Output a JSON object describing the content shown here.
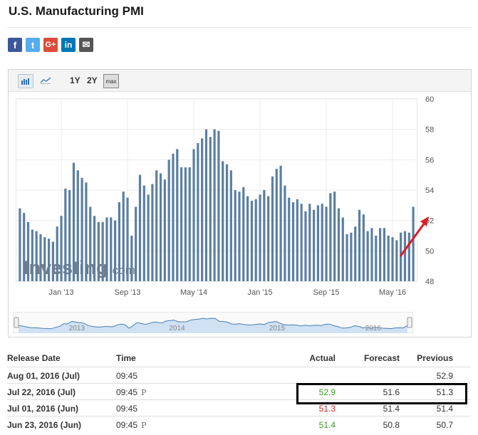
{
  "page": {
    "title": "U.S. Manufacturing PMI"
  },
  "share": {
    "facebook": "f",
    "twitter": "t",
    "googleplus": "G+",
    "linkedin": "in",
    "email": "✉"
  },
  "toolbar": {
    "range_1y": "1Y",
    "range_2y": "2Y",
    "range_max": "max"
  },
  "watermark": {
    "brand": "Investing",
    "suffix": ".com"
  },
  "chart_data": {
    "type": "bar",
    "color": "#5b7fa3",
    "ylim": [
      48,
      60
    ],
    "yticks": [
      "48",
      "50",
      "52",
      "54",
      "56",
      "58",
      "60"
    ],
    "xticks": [
      {
        "label": "Jan '13",
        "index": 10
      },
      {
        "label": "Sep '13",
        "index": 26
      },
      {
        "label": "May '14",
        "index": 42
      },
      {
        "label": "Jan '15",
        "index": 58
      },
      {
        "label": "Sep '15",
        "index": 74
      },
      {
        "label": "May '16",
        "index": 90
      }
    ],
    "values": [
      52.8,
      52.5,
      51.9,
      51.4,
      51.3,
      51.1,
      50.9,
      50.8,
      50.6,
      51.6,
      52.3,
      54.1,
      54.0,
      55.8,
      55.3,
      54.8,
      54.5,
      52.9,
      52.3,
      51.9,
      51.9,
      52.2,
      52.2,
      52.0,
      53.2,
      53.9,
      53.5,
      51.0,
      52.9,
      55.0,
      54.3,
      53.7,
      54.4,
      55.3,
      55.1,
      54.7,
      56.0,
      56.4,
      56.7,
      55.5,
      55.5,
      55.5,
      56.7,
      57.1,
      57.4,
      58.0,
      57.5,
      58.0,
      57.9,
      55.9,
      55.7,
      55.3,
      54.0,
      53.9,
      54.2,
      53.6,
      53.3,
      53.4,
      53.7,
      54.0,
      53.6,
      54.9,
      55.4,
      55.6,
      54.3,
      53.5,
      53.2,
      53.4,
      53.1,
      52.6,
      53.1,
      52.7,
      53.0,
      53.1,
      52.9,
      53.8,
      53.9,
      52.8,
      52.2,
      51.1,
      51.2,
      51.6,
      52.7,
      52.4,
      51.3,
      51.5,
      51.0,
      51.5,
      51.5,
      51.0,
      50.9,
      50.7,
      51.2,
      51.3,
      51.2,
      52.9
    ],
    "navigator_labels": [
      "2013",
      "2014",
      "2015",
      "2016"
    ]
  },
  "table": {
    "headers": {
      "release_date": "Release Date",
      "time": "Time",
      "actual": "Actual",
      "forecast": "Forecast",
      "previous": "Previous"
    },
    "rows": [
      {
        "date": "Aug 01, 2016 (Jul)",
        "time": "09:45",
        "prelim": "",
        "actual": "",
        "forecast": "",
        "previous": "52.9"
      },
      {
        "date": "Jul 22, 2016 (Jul)",
        "time": "09:45",
        "prelim": "P",
        "actual": "52.9",
        "forecast": "51.6",
        "previous": "51.3"
      },
      {
        "date": "Jul 01, 2016 (Jun)",
        "time": "09:45",
        "prelim": "",
        "actual": "51.3",
        "forecast": "51.4",
        "previous": "51.4"
      },
      {
        "date": "Jun 23, 2016 (Jun)",
        "time": "09:45",
        "prelim": "P",
        "actual": "51.4",
        "forecast": "50.8",
        "previous": "50.7"
      }
    ]
  },
  "colors": {
    "positive": "#3d9a1e",
    "negative": "#d11f1f",
    "highlight_box": "#000000",
    "arrow": "#e01b24"
  }
}
